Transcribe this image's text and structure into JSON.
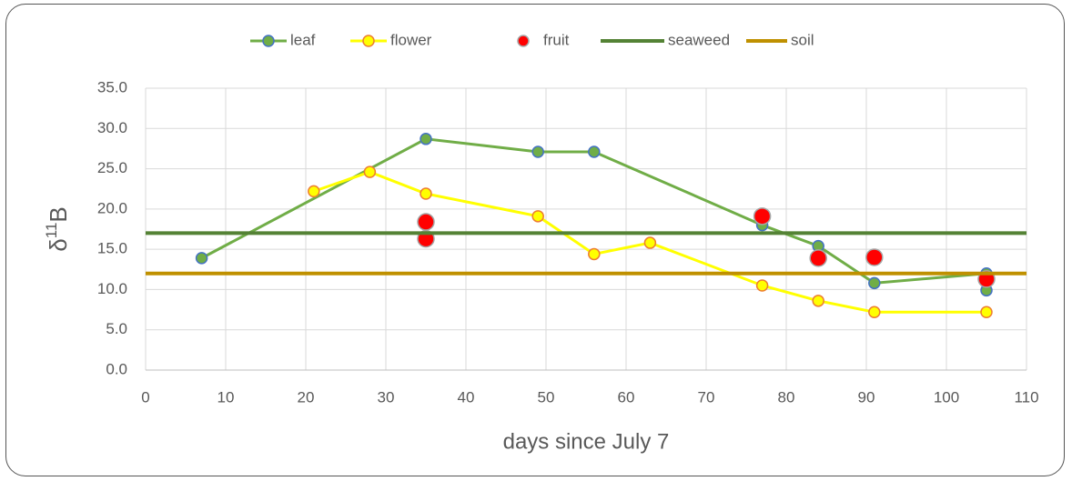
{
  "chart_data": {
    "type": "scatter",
    "x_label": "days since July 7",
    "y_label": {
      "symbol": "δ",
      "sup": "11",
      "tail": "B"
    },
    "xlim": [
      0,
      110
    ],
    "xticks": [
      0,
      10,
      20,
      30,
      40,
      50,
      60,
      70,
      80,
      90,
      100,
      110
    ],
    "ylim": [
      0,
      35
    ],
    "yticks": [
      {
        "value": 0,
        "label": "0.0"
      },
      {
        "value": 5,
        "label": "5.0"
      },
      {
        "value": 10,
        "label": "10.0"
      },
      {
        "value": 15,
        "label": "15.0"
      },
      {
        "value": 20,
        "label": "20.0"
      },
      {
        "value": 25,
        "label": "25.0"
      },
      {
        "value": 30,
        "label": "30.0"
      },
      {
        "value": 35,
        "label": "35.0"
      }
    ],
    "grid": true,
    "legend": "top",
    "series": [
      {
        "name": "leaf",
        "style": "line-marker",
        "color": "#70ad47",
        "marker_edge": "#4472c4",
        "x": [
          7,
          35,
          49,
          56,
          77,
          84,
          91,
          105,
          105
        ],
        "values": [
          13.9,
          28.7,
          27.1,
          27.1,
          18.0,
          15.4,
          10.8,
          12.0,
          9.9
        ]
      },
      {
        "name": "flower",
        "style": "line-marker",
        "color": "#ffff00",
        "marker_edge": "#ed7d31",
        "x": [
          21,
          28,
          35,
          49,
          56,
          63,
          77,
          84,
          91,
          105
        ],
        "values": [
          22.2,
          24.6,
          21.9,
          19.1,
          14.4,
          15.8,
          10.5,
          8.6,
          7.2,
          7.2
        ]
      },
      {
        "name": "fruit",
        "style": "marker",
        "color": "#ff0000",
        "marker_edge": "#a5a5a5",
        "x": [
          35,
          35,
          77,
          84,
          91,
          105
        ],
        "values": [
          18.4,
          16.3,
          19.1,
          13.9,
          14.0,
          11.3
        ]
      },
      {
        "name": "seaweed",
        "style": "line",
        "color": "#548235",
        "x": [
          0,
          110
        ],
        "values": [
          17.0,
          17.0
        ]
      },
      {
        "name": "soil",
        "style": "line",
        "color": "#bf9000",
        "x": [
          0,
          110
        ],
        "values": [
          12.0,
          12.0
        ]
      }
    ]
  }
}
